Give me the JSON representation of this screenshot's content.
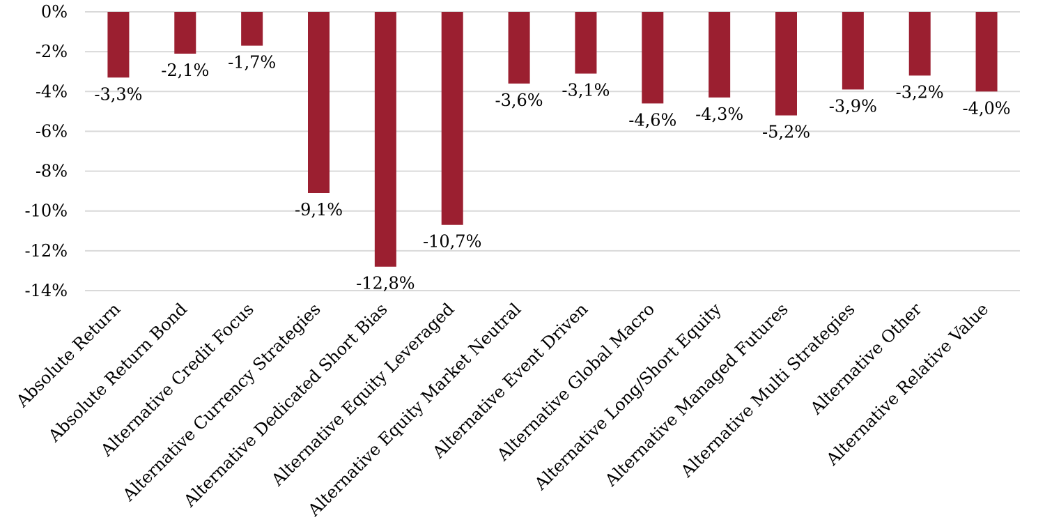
{
  "chart_data": {
    "type": "bar",
    "categories": [
      "Absolute Return",
      "Absolute Return Bond",
      "Alternative Credit Focus",
      "Alternative Currency Strategies",
      "Alternative Dedicated Short Bias",
      "Alternative Equity Leveraged",
      "Alternative Equity Market Neutral",
      "Alternative Event Driven",
      "Alternative Global Macro",
      "Alternative Long/Short Equity",
      "Alternative Managed Futures",
      "Alternative Multi Strategies",
      "Alternative Other",
      "Alternative Relative Value"
    ],
    "values": [
      -3.3,
      -2.1,
      -1.7,
      -9.1,
      -12.8,
      -10.7,
      -3.6,
      -3.1,
      -4.6,
      -4.3,
      -5.2,
      -3.9,
      -3.2,
      -4.0
    ],
    "data_labels": [
      "-3,3%",
      "-2,1%",
      "-1,7%",
      "-9,1%",
      "-12,8%",
      "-10,7%",
      "-3,6%",
      "-3,1%",
      "-4,6%",
      "-4,3%",
      "-5,2%",
      "-3,9%",
      "-3,2%",
      "-4,0%"
    ],
    "y_ticks": [
      0,
      -2,
      -4,
      -6,
      -8,
      -10,
      -12,
      -14
    ],
    "y_tick_labels": [
      "0%",
      "-2%",
      "-4%",
      "-6%",
      "-8%",
      "-10%",
      "-12%",
      "-14%"
    ],
    "ylim": [
      -14,
      0
    ],
    "grid": true,
    "legend": "none",
    "title": "",
    "xlabel": "",
    "ylabel": "",
    "bar_color": "#9b1f30",
    "grid_color": "#d9d9d9"
  }
}
